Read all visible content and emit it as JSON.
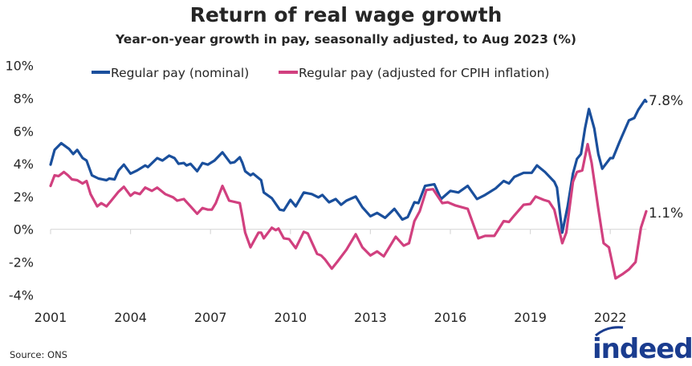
{
  "chart_data": {
    "type": "line",
    "title": "Return of real wage growth",
    "subtitle": "Year-on-year growth in pay, seasonally adjusted, to Aug 2023 (%)",
    "xlim": [
      2001,
      2023.6
    ],
    "ylim": [
      -4,
      10
    ],
    "x_ticks": [
      2001,
      2004,
      2007,
      2010,
      2013,
      2016,
      2019,
      2022
    ],
    "x_tick_labels": [
      "2001",
      "2004",
      "2007",
      "2010",
      "2013",
      "2016",
      "2019",
      "2022"
    ],
    "y_ticks": [
      -4,
      -2,
      0,
      2,
      4,
      6,
      8,
      10
    ],
    "y_tick_labels": [
      "-4%",
      "-2%",
      "0%",
      "2%",
      "4%",
      "6%",
      "8%",
      "10%"
    ],
    "grid": false,
    "legend_placement": "top",
    "series": [
      {
        "name": "Regular pay (nominal)",
        "color": "#1a4f9c",
        "end_label": "7.8%",
        "points": [
          [
            2001.0,
            3.95
          ],
          [
            2001.15,
            4.85
          ],
          [
            2001.4,
            5.26
          ],
          [
            2001.7,
            4.9
          ],
          [
            2001.85,
            4.6
          ],
          [
            2002.0,
            4.85
          ],
          [
            2002.2,
            4.36
          ],
          [
            2002.35,
            4.2
          ],
          [
            2002.55,
            3.3
          ],
          [
            2002.8,
            3.1
          ],
          [
            2003.1,
            3.0
          ],
          [
            2003.2,
            3.1
          ],
          [
            2003.4,
            3.05
          ],
          [
            2003.55,
            3.6
          ],
          [
            2003.75,
            3.95
          ],
          [
            2004.0,
            3.4
          ],
          [
            2004.25,
            3.6
          ],
          [
            2004.55,
            3.9
          ],
          [
            2004.65,
            3.8
          ],
          [
            2005.0,
            4.35
          ],
          [
            2005.2,
            4.2
          ],
          [
            2005.45,
            4.5
          ],
          [
            2005.65,
            4.35
          ],
          [
            2005.8,
            4.0
          ],
          [
            2006.0,
            4.05
          ],
          [
            2006.1,
            3.9
          ],
          [
            2006.25,
            4.0
          ],
          [
            2006.5,
            3.55
          ],
          [
            2006.7,
            4.05
          ],
          [
            2006.9,
            3.95
          ],
          [
            2007.15,
            4.2
          ],
          [
            2007.45,
            4.7
          ],
          [
            2007.75,
            4.05
          ],
          [
            2007.9,
            4.1
          ],
          [
            2008.1,
            4.4
          ],
          [
            2008.2,
            4.05
          ],
          [
            2008.3,
            3.55
          ],
          [
            2008.5,
            3.3
          ],
          [
            2008.6,
            3.4
          ],
          [
            2008.9,
            3.0
          ],
          [
            2009.0,
            2.25
          ],
          [
            2009.3,
            1.9
          ],
          [
            2009.6,
            1.2
          ],
          [
            2009.75,
            1.15
          ],
          [
            2010.0,
            1.8
          ],
          [
            2010.2,
            1.4
          ],
          [
            2010.5,
            2.25
          ],
          [
            2010.8,
            2.15
          ],
          [
            2011.05,
            1.95
          ],
          [
            2011.2,
            2.1
          ],
          [
            2011.45,
            1.65
          ],
          [
            2011.7,
            1.85
          ],
          [
            2011.9,
            1.5
          ],
          [
            2012.1,
            1.75
          ],
          [
            2012.45,
            2.0
          ],
          [
            2012.7,
            1.35
          ],
          [
            2013.0,
            0.8
          ],
          [
            2013.25,
            1.0
          ],
          [
            2013.55,
            0.7
          ],
          [
            2013.9,
            1.25
          ],
          [
            2014.2,
            0.6
          ],
          [
            2014.4,
            0.75
          ],
          [
            2014.65,
            1.65
          ],
          [
            2014.8,
            1.6
          ],
          [
            2015.05,
            2.65
          ],
          [
            2015.4,
            2.75
          ],
          [
            2015.65,
            1.85
          ],
          [
            2016.0,
            2.35
          ],
          [
            2016.3,
            2.25
          ],
          [
            2016.65,
            2.65
          ],
          [
            2017.0,
            1.85
          ],
          [
            2017.3,
            2.1
          ],
          [
            2017.7,
            2.5
          ],
          [
            2018.0,
            2.95
          ],
          [
            2018.2,
            2.8
          ],
          [
            2018.4,
            3.2
          ],
          [
            2018.75,
            3.45
          ],
          [
            2019.05,
            3.45
          ],
          [
            2019.25,
            3.9
          ],
          [
            2019.55,
            3.5
          ],
          [
            2019.9,
            2.9
          ],
          [
            2020.0,
            2.55
          ],
          [
            2020.2,
            -0.2
          ],
          [
            2020.4,
            1.4
          ],
          [
            2020.6,
            3.4
          ],
          [
            2020.75,
            4.3
          ],
          [
            2020.9,
            4.6
          ],
          [
            2021.05,
            6.15
          ],
          [
            2021.2,
            7.35
          ],
          [
            2021.4,
            6.15
          ],
          [
            2021.55,
            4.6
          ],
          [
            2021.7,
            3.7
          ],
          [
            2022.0,
            4.35
          ],
          [
            2022.1,
            4.35
          ],
          [
            2022.35,
            5.35
          ],
          [
            2022.7,
            6.65
          ],
          [
            2022.9,
            6.8
          ],
          [
            2023.05,
            7.3
          ],
          [
            2023.3,
            7.9
          ],
          [
            2023.35,
            7.8
          ]
        ]
      },
      {
        "name": "Regular pay (adjusted for CPIH inflation)",
        "color": "#d1407f",
        "end_label": "1.1%",
        "points": [
          [
            2001.0,
            2.65
          ],
          [
            2001.15,
            3.3
          ],
          [
            2001.3,
            3.25
          ],
          [
            2001.5,
            3.5
          ],
          [
            2001.65,
            3.3
          ],
          [
            2001.8,
            3.05
          ],
          [
            2002.0,
            3.0
          ],
          [
            2002.2,
            2.8
          ],
          [
            2002.35,
            2.95
          ],
          [
            2002.5,
            2.15
          ],
          [
            2002.75,
            1.4
          ],
          [
            2002.9,
            1.6
          ],
          [
            2003.1,
            1.4
          ],
          [
            2003.3,
            1.8
          ],
          [
            2003.55,
            2.3
          ],
          [
            2003.75,
            2.6
          ],
          [
            2004.0,
            2.05
          ],
          [
            2004.15,
            2.25
          ],
          [
            2004.35,
            2.15
          ],
          [
            2004.55,
            2.55
          ],
          [
            2004.8,
            2.35
          ],
          [
            2005.0,
            2.55
          ],
          [
            2005.3,
            2.15
          ],
          [
            2005.6,
            1.95
          ],
          [
            2005.75,
            1.75
          ],
          [
            2006.0,
            1.85
          ],
          [
            2006.25,
            1.4
          ],
          [
            2006.5,
            0.95
          ],
          [
            2006.7,
            1.3
          ],
          [
            2006.9,
            1.2
          ],
          [
            2007.05,
            1.2
          ],
          [
            2007.2,
            1.6
          ],
          [
            2007.45,
            2.65
          ],
          [
            2007.7,
            1.75
          ],
          [
            2008.1,
            1.6
          ],
          [
            2008.2,
            0.75
          ],
          [
            2008.3,
            -0.2
          ],
          [
            2008.5,
            -1.1
          ],
          [
            2008.6,
            -0.8
          ],
          [
            2008.8,
            -0.2
          ],
          [
            2008.9,
            -0.2
          ],
          [
            2009.0,
            -0.55
          ],
          [
            2009.3,
            0.1
          ],
          [
            2009.45,
            -0.05
          ],
          [
            2009.55,
            0.05
          ],
          [
            2009.75,
            -0.55
          ],
          [
            2009.95,
            -0.6
          ],
          [
            2010.2,
            -1.15
          ],
          [
            2010.5,
            -0.15
          ],
          [
            2010.65,
            -0.25
          ],
          [
            2011.0,
            -1.5
          ],
          [
            2011.15,
            -1.6
          ],
          [
            2011.3,
            -1.85
          ],
          [
            2011.55,
            -2.4
          ],
          [
            2011.75,
            -2.0
          ],
          [
            2012.1,
            -1.25
          ],
          [
            2012.45,
            -0.3
          ],
          [
            2012.7,
            -1.1
          ],
          [
            2013.0,
            -1.6
          ],
          [
            2013.25,
            -1.35
          ],
          [
            2013.5,
            -1.65
          ],
          [
            2013.95,
            -0.45
          ],
          [
            2014.25,
            -1.0
          ],
          [
            2014.45,
            -0.85
          ],
          [
            2014.65,
            0.5
          ],
          [
            2014.85,
            1.1
          ],
          [
            2015.1,
            2.4
          ],
          [
            2015.35,
            2.45
          ],
          [
            2015.7,
            1.6
          ],
          [
            2015.9,
            1.65
          ],
          [
            2016.2,
            1.45
          ],
          [
            2016.65,
            1.25
          ],
          [
            2017.05,
            -0.55
          ],
          [
            2017.3,
            -0.4
          ],
          [
            2017.65,
            -0.4
          ],
          [
            2018.0,
            0.5
          ],
          [
            2018.2,
            0.45
          ],
          [
            2018.4,
            0.85
          ],
          [
            2018.75,
            1.5
          ],
          [
            2019.0,
            1.55
          ],
          [
            2019.2,
            2.0
          ],
          [
            2019.5,
            1.8
          ],
          [
            2019.7,
            1.7
          ],
          [
            2019.9,
            1.2
          ],
          [
            2020.2,
            -0.85
          ],
          [
            2020.35,
            -0.2
          ],
          [
            2020.6,
            2.9
          ],
          [
            2020.75,
            3.5
          ],
          [
            2020.95,
            3.6
          ],
          [
            2021.15,
            5.2
          ],
          [
            2021.3,
            4.05
          ],
          [
            2021.55,
            1.25
          ],
          [
            2021.75,
            -0.85
          ],
          [
            2021.95,
            -1.1
          ],
          [
            2022.2,
            -3.0
          ],
          [
            2022.45,
            -2.75
          ],
          [
            2022.7,
            -2.45
          ],
          [
            2022.95,
            -2.0
          ],
          [
            2023.15,
            0.1
          ],
          [
            2023.35,
            1.1
          ]
        ]
      }
    ]
  },
  "source": "Source: ONS",
  "logo_text": "indeed"
}
